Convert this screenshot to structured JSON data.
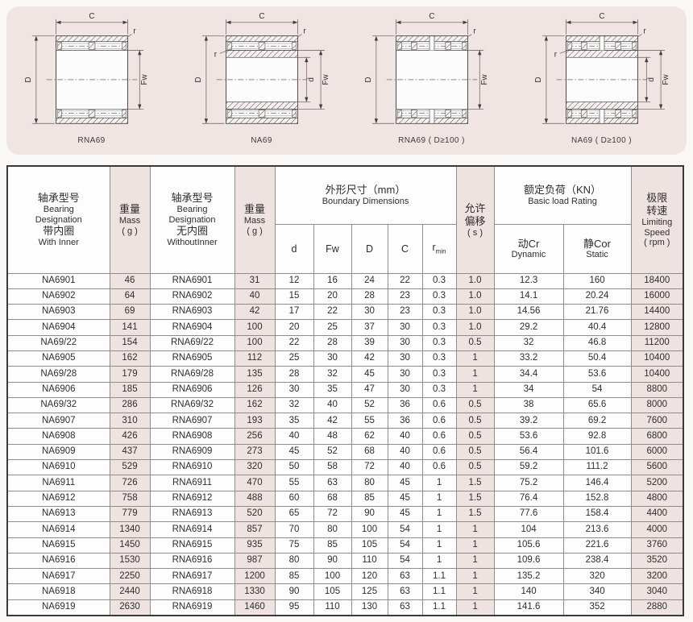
{
  "page": {
    "bg": "#faf8f7",
    "panel_bg": "#f0e5e2",
    "accent_bg": "#eee3e0",
    "text_color": "#2e2e2e"
  },
  "dim_labels": {
    "c": "C",
    "outer_d": "D",
    "fw": "Fw",
    "inner_d": "d",
    "r": "r"
  },
  "diagrams": [
    {
      "caption": "RNA69",
      "inner": false,
      "split": false
    },
    {
      "caption": "NA69",
      "inner": true,
      "split": false
    },
    {
      "caption": "RNA69 ( D≥100 )",
      "inner": false,
      "split": true
    },
    {
      "caption": "NA69 ( D≥100 )",
      "inner": true,
      "split": true
    }
  ],
  "table": {
    "headers": {
      "bearing_with": [
        "轴承型号",
        "Bearing",
        "Designation",
        "带内圈",
        "With Inner"
      ],
      "mass1": [
        "重量",
        "Mass",
        "( g )"
      ],
      "bearing_without": [
        "轴承型号",
        "Bearing",
        "Designation",
        "无内圈",
        "WithoutInner"
      ],
      "mass2": [
        "重量",
        "Mass",
        "( g )"
      ],
      "boundary_group": [
        "外形尺寸（mm）",
        "Boundary Dimensions"
      ],
      "dims": [
        "d",
        "Fw",
        "D",
        "C"
      ],
      "rmin": {
        "base": "r",
        "sub": "min"
      },
      "offset": [
        "允许",
        "偏移",
        "( s )"
      ],
      "load_group": [
        "额定负荷（KN）",
        "Basic load Rating"
      ],
      "load_dynamic": [
        "动Cr",
        "Dynamic"
      ],
      "load_static": [
        "静Cor",
        "Static"
      ],
      "speed": [
        "极限",
        "转速",
        "Limiting",
        "Speed",
        "( rpm )"
      ]
    },
    "rows": [
      [
        "NA6901",
        "46",
        "RNA6901",
        "31",
        "12",
        "16",
        "24",
        "22",
        "0.3",
        "1.0",
        "12.3",
        "160",
        "18400"
      ],
      [
        "NA6902",
        "64",
        "RNA6902",
        "40",
        "15",
        "20",
        "28",
        "23",
        "0.3",
        "1.0",
        "14.1",
        "20.24",
        "16000"
      ],
      [
        "NA6903",
        "69",
        "RNA6903",
        "42",
        "17",
        "22",
        "30",
        "23",
        "0.3",
        "1.0",
        "14.56",
        "21.76",
        "14400"
      ],
      [
        "NA6904",
        "141",
        "RNA6904",
        "100",
        "20",
        "25",
        "37",
        "30",
        "0.3",
        "1.0",
        "29.2",
        "40.4",
        "12800"
      ],
      [
        "NA69/22",
        "154",
        "RNA69/22",
        "100",
        "22",
        "28",
        "39",
        "30",
        "0.3",
        "0.5",
        "32",
        "46.8",
        "11200"
      ],
      [
        "NA6905",
        "162",
        "RNA6905",
        "112",
        "25",
        "30",
        "42",
        "30",
        "0.3",
        "1",
        "33.2",
        "50.4",
        "10400"
      ],
      [
        "NA69/28",
        "179",
        "RNA69/28",
        "135",
        "28",
        "32",
        "45",
        "30",
        "0.3",
        "1",
        "34.4",
        "53.6",
        "10400"
      ],
      [
        "NA6906",
        "185",
        "RNA6906",
        "126",
        "30",
        "35",
        "47",
        "30",
        "0.3",
        "1",
        "34",
        "54",
        "8800"
      ],
      [
        "NA69/32",
        "286",
        "RNA69/32",
        "162",
        "32",
        "40",
        "52",
        "36",
        "0.6",
        "0.5",
        "38",
        "65.6",
        "8000"
      ],
      [
        "NA6907",
        "310",
        "RNA6907",
        "193",
        "35",
        "42",
        "55",
        "36",
        "0.6",
        "0.5",
        "39.2",
        "69.2",
        "7600"
      ],
      [
        "NA6908",
        "426",
        "RNA6908",
        "256",
        "40",
        "48",
        "62",
        "40",
        "0.6",
        "0.5",
        "53.6",
        "92.8",
        "6800"
      ],
      [
        "NA6909",
        "437",
        "RNA6909",
        "273",
        "45",
        "52",
        "68",
        "40",
        "0.6",
        "0.5",
        "56.4",
        "101.6",
        "6000"
      ],
      [
        "NA6910",
        "529",
        "RNA6910",
        "320",
        "50",
        "58",
        "72",
        "40",
        "0.6",
        "0.5",
        "59.2",
        "111.2",
        "5600"
      ],
      [
        "NA6911",
        "726",
        "RNA6911",
        "470",
        "55",
        "63",
        "80",
        "45",
        "1",
        "1.5",
        "75.2",
        "146.4",
        "5200"
      ],
      [
        "NA6912",
        "758",
        "RNA6912",
        "488",
        "60",
        "68",
        "85",
        "45",
        "1",
        "1.5",
        "76.4",
        "152.8",
        "4800"
      ],
      [
        "NA6913",
        "779",
        "RNA6913",
        "520",
        "65",
        "72",
        "90",
        "45",
        "1",
        "1.5",
        "77.6",
        "158.4",
        "4400"
      ],
      [
        "NA6914",
        "1340",
        "RNA6914",
        "857",
        "70",
        "80",
        "100",
        "54",
        "1",
        "1",
        "104",
        "213.6",
        "4000"
      ],
      [
        "NA6915",
        "1450",
        "RNA6915",
        "935",
        "75",
        "85",
        "105",
        "54",
        "1",
        "1",
        "105.6",
        "221.6",
        "3760"
      ],
      [
        "NA6916",
        "1530",
        "RNA6916",
        "987",
        "80",
        "90",
        "110",
        "54",
        "1",
        "1",
        "109.6",
        "238.4",
        "3520"
      ],
      [
        "NA6917",
        "2250",
        "RNA6917",
        "1200",
        "85",
        "100",
        "120",
        "63",
        "1.1",
        "1",
        "135.2",
        "320",
        "3200"
      ],
      [
        "NA6918",
        "2440",
        "RNA6918",
        "1330",
        "90",
        "105",
        "125",
        "63",
        "1.1",
        "1",
        "140",
        "340",
        "3040"
      ],
      [
        "NA6919",
        "2630",
        "RNA6919",
        "1460",
        "95",
        "110",
        "130",
        "63",
        "1.1",
        "1",
        "141.6",
        "352",
        "2880"
      ]
    ]
  }
}
